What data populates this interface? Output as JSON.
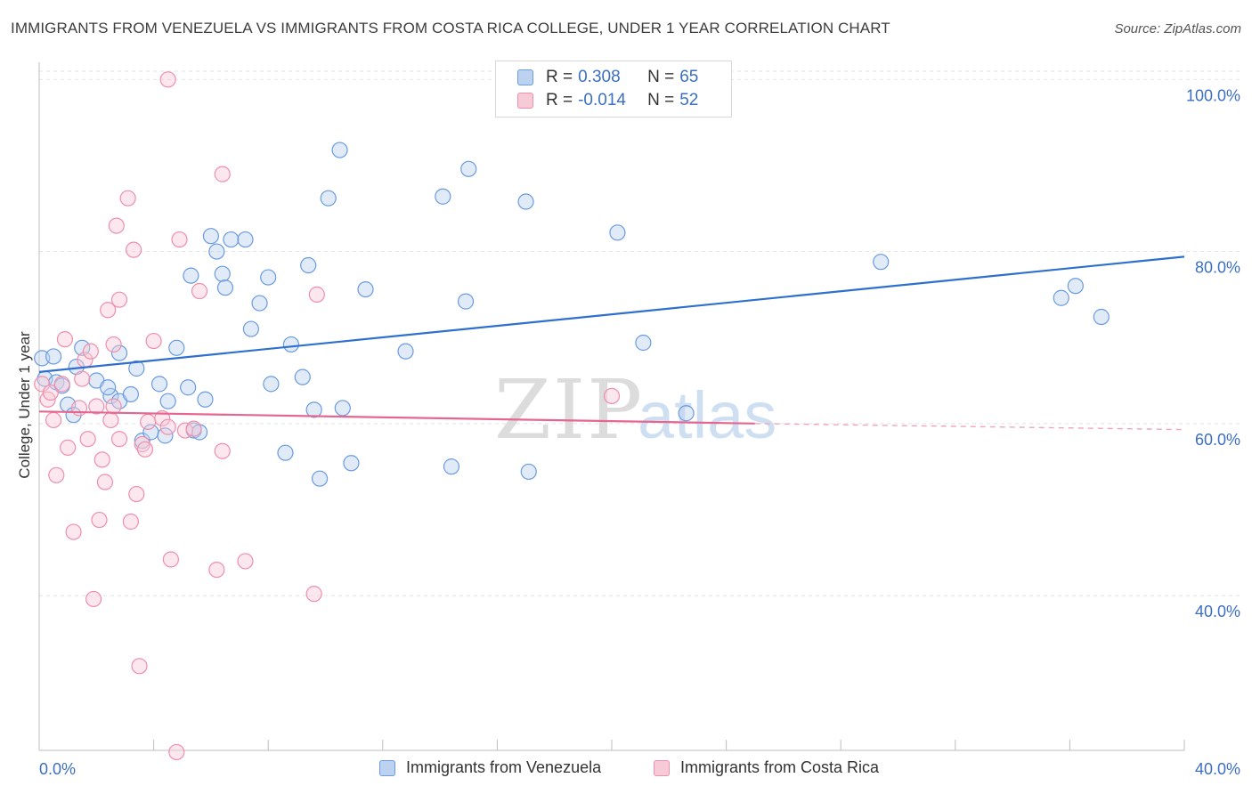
{
  "title": "IMMIGRANTS FROM VENEZUELA VS IMMIGRANTS FROM COSTA RICA COLLEGE, UNDER 1 YEAR CORRELATION CHART",
  "source": "Source: ZipAtlas.com",
  "watermark": {
    "zip": "ZIP",
    "atlas": "atlas"
  },
  "legend": {
    "rows": [
      {
        "r_label": "R = ",
        "r_value": "0.308",
        "n_label": "N = ",
        "n_value": "65",
        "color": "#a9c4ec"
      },
      {
        "r_label": "R = ",
        "r_value": "-0.014",
        "n_label": "N = ",
        "n_value": "52",
        "color": "#f4b8c9"
      }
    ]
  },
  "chart_data": {
    "type": "scatter",
    "title": "IMMIGRANTS FROM VENEZUELA VS IMMIGRANTS FROM COSTA RICA COLLEGE, UNDER 1 YEAR CORRELATION CHART",
    "xlabel": "",
    "ylabel": "College, Under 1 year",
    "xlim": [
      0,
      40
    ],
    "ylim": [
      22,
      102
    ],
    "x_tick_labels": [
      "0.0%",
      "40.0%"
    ],
    "y_ticks": [
      40,
      60,
      80,
      100
    ],
    "y_tick_labels": [
      "40.0%",
      "60.0%",
      "80.0%",
      "100.0%"
    ],
    "grid": true,
    "legend_position": "bottom",
    "series": [
      {
        "name": "Immigrants from Venezuela",
        "color": "#6a9be0",
        "fill": "#bcd2f0",
        "trend": {
          "x": [
            0,
            40
          ],
          "y": [
            66.0,
            79.4
          ],
          "dashed_from": null
        },
        "points": [
          [
            0.1,
            67.6
          ],
          [
            0.2,
            65.2
          ],
          [
            0.5,
            67.8
          ],
          [
            0.6,
            64.8
          ],
          [
            0.8,
            64.4
          ],
          [
            1.3,
            66.6
          ],
          [
            1.0,
            62.2
          ],
          [
            1.5,
            68.8
          ],
          [
            1.2,
            61.0
          ],
          [
            2.0,
            65.0
          ],
          [
            2.5,
            63.2
          ],
          [
            2.4,
            64.2
          ],
          [
            2.8,
            62.6
          ],
          [
            2.8,
            68.2
          ],
          [
            3.2,
            63.4
          ],
          [
            3.4,
            66.4
          ],
          [
            3.6,
            58.0
          ],
          [
            3.9,
            59.0
          ],
          [
            4.2,
            64.6
          ],
          [
            4.4,
            58.6
          ],
          [
            4.5,
            62.6
          ],
          [
            4.8,
            68.8
          ],
          [
            5.2,
            64.2
          ],
          [
            5.3,
            77.2
          ],
          [
            5.4,
            59.2
          ],
          [
            5.6,
            59.0
          ],
          [
            5.8,
            62.8
          ],
          [
            6.0,
            81.8
          ],
          [
            6.2,
            80.0
          ],
          [
            6.4,
            77.4
          ],
          [
            6.5,
            75.8
          ],
          [
            6.7,
            81.4
          ],
          [
            7.2,
            81.4
          ],
          [
            7.4,
            71.0
          ],
          [
            7.7,
            74.0
          ],
          [
            8.0,
            77.0
          ],
          [
            8.1,
            64.6
          ],
          [
            8.6,
            56.6
          ],
          [
            8.8,
            69.2
          ],
          [
            9.2,
            65.4
          ],
          [
            9.4,
            78.4
          ],
          [
            9.6,
            61.6
          ],
          [
            9.8,
            53.6
          ],
          [
            10.1,
            86.2
          ],
          [
            10.5,
            91.8
          ],
          [
            10.6,
            61.8
          ],
          [
            10.9,
            55.4
          ],
          [
            11.4,
            75.6
          ],
          [
            12.8,
            68.4
          ],
          [
            14.1,
            86.4
          ],
          [
            14.4,
            55.0
          ],
          [
            14.9,
            74.2
          ],
          [
            15.0,
            89.6
          ],
          [
            17.0,
            85.8
          ],
          [
            17.1,
            54.4
          ],
          [
            20.2,
            82.2
          ],
          [
            21.1,
            69.4
          ],
          [
            22.6,
            61.2
          ],
          [
            29.4,
            78.8
          ],
          [
            35.7,
            74.6
          ],
          [
            36.2,
            76.0
          ],
          [
            37.1,
            72.4
          ]
        ]
      },
      {
        "name": "Immigrants from Costa Rica",
        "color": "#ee8fab",
        "fill": "#f7cad7",
        "trend": {
          "x": [
            0,
            25
          ],
          "y": [
            61.4,
            60.0
          ],
          "dashed_from": 25,
          "dashed_to_y": 59.3
        },
        "points": [
          [
            0.1,
            64.6
          ],
          [
            0.3,
            62.8
          ],
          [
            0.4,
            63.6
          ],
          [
            0.5,
            60.4
          ],
          [
            0.6,
            54.0
          ],
          [
            0.8,
            64.6
          ],
          [
            0.9,
            69.8
          ],
          [
            1.0,
            57.2
          ],
          [
            1.2,
            47.4
          ],
          [
            1.4,
            61.8
          ],
          [
            1.5,
            65.2
          ],
          [
            1.6,
            67.4
          ],
          [
            1.7,
            58.2
          ],
          [
            1.8,
            68.4
          ],
          [
            1.9,
            39.6
          ],
          [
            2.0,
            62.0
          ],
          [
            2.1,
            48.8
          ],
          [
            2.2,
            55.8
          ],
          [
            2.3,
            53.2
          ],
          [
            2.4,
            73.2
          ],
          [
            2.5,
            60.4
          ],
          [
            2.6,
            62.0
          ],
          [
            2.6,
            69.2
          ],
          [
            2.7,
            83.0
          ],
          [
            2.8,
            58.2
          ],
          [
            2.8,
            74.4
          ],
          [
            3.1,
            86.2
          ],
          [
            3.2,
            48.6
          ],
          [
            3.3,
            80.2
          ],
          [
            3.4,
            51.8
          ],
          [
            3.5,
            31.8
          ],
          [
            3.6,
            57.6
          ],
          [
            3.7,
            57.0
          ],
          [
            3.8,
            60.2
          ],
          [
            4.0,
            69.6
          ],
          [
            4.3,
            60.6
          ],
          [
            4.5,
            59.6
          ],
          [
            4.5,
            100.0
          ],
          [
            4.6,
            44.2
          ],
          [
            4.8,
            21.8
          ],
          [
            4.9,
            81.4
          ],
          [
            5.1,
            59.2
          ],
          [
            5.4,
            59.4
          ],
          [
            5.6,
            75.4
          ],
          [
            6.2,
            43.0
          ],
          [
            6.4,
            89.0
          ],
          [
            6.4,
            56.8
          ],
          [
            7.2,
            44.0
          ],
          [
            9.6,
            40.2
          ],
          [
            9.7,
            75.0
          ],
          [
            20.0,
            63.2
          ]
        ]
      }
    ]
  }
}
